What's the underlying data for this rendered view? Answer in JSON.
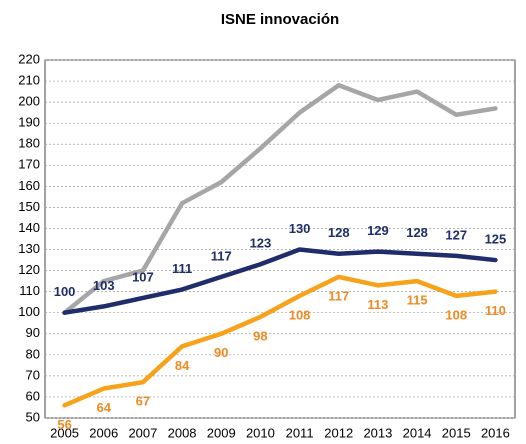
{
  "chart_data": {
    "type": "line",
    "title": "ISNE innovación",
    "categories": [
      "2005",
      "2006",
      "2007",
      "2008",
      "2009",
      "2010",
      "2011",
      "2012",
      "2013",
      "2014",
      "2015",
      "2016"
    ],
    "series": [
      {
        "color": "#a6a6a6",
        "values": [
          100,
          115,
          120,
          152,
          162,
          178,
          195,
          208,
          201,
          205,
          194,
          197
        ]
      },
      {
        "color": "#1f2d6b",
        "label_position": "above",
        "values": [
          100,
          103,
          107,
          111,
          117,
          123,
          130,
          128,
          129,
          128,
          127,
          125
        ]
      },
      {
        "color": "#f7a21b",
        "label_color": "#f08a24",
        "label_position": "below",
        "values": [
          56,
          64,
          67,
          84,
          90,
          98,
          108,
          117,
          113,
          115,
          108,
          110
        ]
      }
    ],
    "ylim": [
      50,
      220
    ],
    "yticks": [
      50,
      60,
      70,
      80,
      90,
      100,
      110,
      120,
      130,
      140,
      150,
      160,
      170,
      180,
      190,
      200,
      210,
      220
    ],
    "grid": true
  }
}
